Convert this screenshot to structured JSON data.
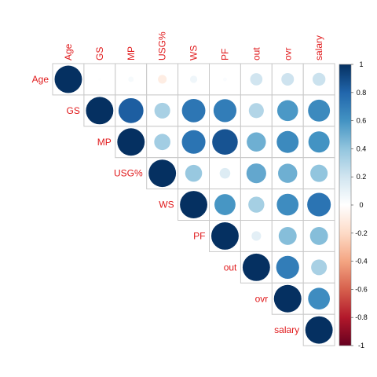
{
  "chart_data": {
    "type": "heatmap",
    "variables": [
      "Age",
      "GS",
      "MP",
      "USG%",
      "WS",
      "PF",
      "out",
      "ovr",
      "salary"
    ],
    "shape": "circle",
    "triangle": "upper",
    "matrix": [
      [
        1.0,
        0.01,
        0.04,
        -0.1,
        0.07,
        0.02,
        0.2,
        0.21,
        0.22
      ],
      [
        0.01,
        1.0,
        0.83,
        0.33,
        0.73,
        0.7,
        0.3,
        0.58,
        0.64
      ],
      [
        0.04,
        0.83,
        1.0,
        0.35,
        0.74,
        0.87,
        0.49,
        0.64,
        0.6
      ],
      [
        -0.1,
        0.33,
        0.35,
        1.0,
        0.38,
        0.15,
        0.52,
        0.49,
        0.4
      ],
      [
        0.07,
        0.73,
        0.74,
        0.38,
        1.0,
        0.59,
        0.34,
        0.63,
        0.74
      ],
      [
        0.02,
        0.7,
        0.87,
        0.15,
        0.59,
        1.0,
        0.12,
        0.43,
        0.43
      ],
      [
        0.2,
        0.3,
        0.49,
        0.52,
        0.34,
        0.12,
        1.0,
        0.7,
        0.33
      ],
      [
        0.21,
        0.58,
        0.64,
        0.49,
        0.63,
        0.43,
        0.7,
        1.0,
        0.63
      ],
      [
        0.22,
        0.64,
        0.6,
        0.4,
        0.74,
        0.43,
        0.33,
        0.63,
        1.0
      ]
    ],
    "colorbar": {
      "ticks": [
        "1",
        "0.8",
        "0.6",
        "0.4",
        "0.2",
        "0",
        "-0.2",
        "-0.4",
        "-0.6",
        "-0.8",
        "-1"
      ],
      "range": [
        -1,
        1
      ],
      "colors": [
        "#67001f",
        "#b2182b",
        "#d6604d",
        "#f4a582",
        "#fddbc7",
        "#ffffff",
        "#d1e5f0",
        "#92c5de",
        "#4393c3",
        "#2166ac",
        "#053061"
      ]
    },
    "label_color": "#e0191b",
    "grid_color": "#c8c8c8"
  }
}
